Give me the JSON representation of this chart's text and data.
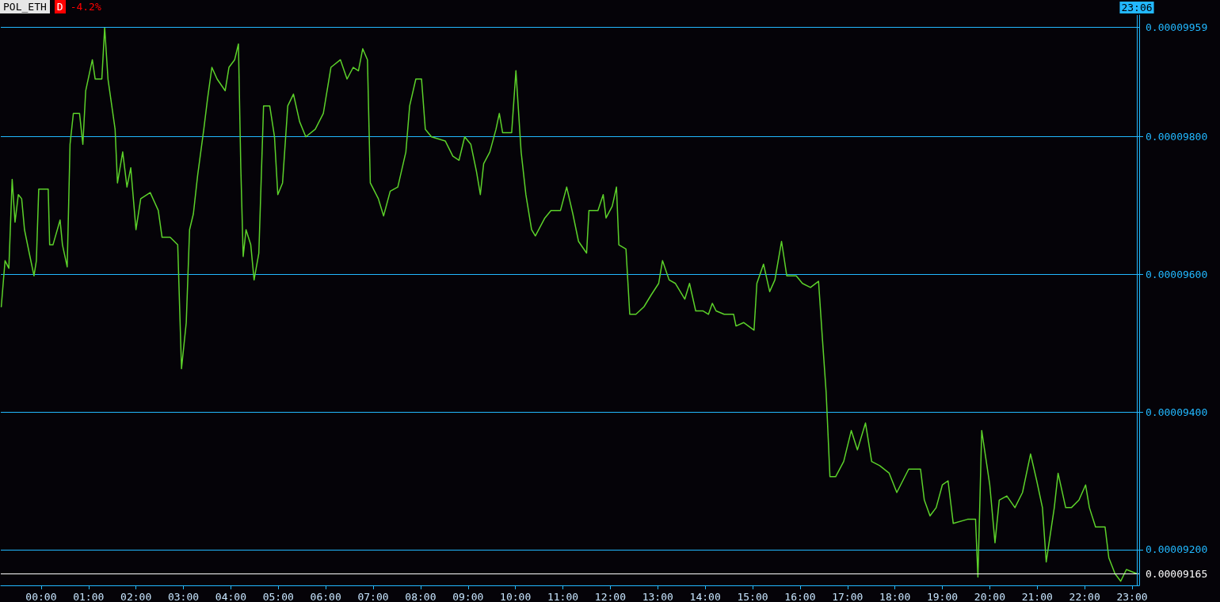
{
  "chart_data": {
    "type": "line",
    "title": "POL_ETH",
    "annotations": [
      "D",
      "-4.2%"
    ],
    "x": [
      -0.84,
      -0.76,
      -0.68,
      -0.61,
      -0.55,
      -0.48,
      -0.41,
      -0.35,
      -0.25,
      -0.15,
      -0.1,
      -0.05,
      0.15,
      0.18,
      0.25,
      0.4,
      0.45,
      0.55,
      0.61,
      0.68,
      0.81,
      0.88,
      0.94,
      1.08,
      1.14,
      1.28,
      1.34,
      1.41,
      1.56,
      1.61,
      1.72,
      1.81,
      1.89,
      2.0,
      2.1,
      2.3,
      2.47,
      2.55,
      2.72,
      2.88,
      2.96,
      3.06,
      3.13,
      3.21,
      3.3,
      3.43,
      3.51,
      3.6,
      3.71,
      3.88,
      3.96,
      4.08,
      4.16,
      4.21,
      4.26,
      4.32,
      4.42,
      4.49,
      4.59,
      4.69,
      4.82,
      4.92,
      4.99,
      5.09,
      5.2,
      5.32,
      5.45,
      5.58,
      5.78,
      5.95,
      6.11,
      6.31,
      6.45,
      6.58,
      6.69,
      6.78,
      6.88,
      6.94,
      7.11,
      7.22,
      7.36,
      7.52,
      7.69,
      7.77,
      7.9,
      8.02,
      8.1,
      8.23,
      8.52,
      8.68,
      8.81,
      8.93,
      9.06,
      9.18,
      9.26,
      9.33,
      9.46,
      9.59,
      9.66,
      9.73,
      9.92,
      10.01,
      10.12,
      10.22,
      10.34,
      10.42,
      10.62,
      10.75,
      10.95,
      11.08,
      11.21,
      11.33,
      11.5,
      11.55,
      11.74,
      11.85,
      11.91,
      12.04,
      12.13,
      12.18,
      12.33,
      12.41,
      12.54,
      12.71,
      12.86,
      13.02,
      13.1,
      13.24,
      13.37,
      13.57,
      13.67,
      13.8,
      13.95,
      14.07,
      14.15,
      14.23,
      14.4,
      14.6,
      14.65,
      14.81,
      15.03,
      15.09,
      15.23,
      15.36,
      15.47,
      15.61,
      15.72,
      15.92,
      16.05,
      16.22,
      16.39,
      16.47,
      16.55,
      16.63,
      16.75,
      16.92,
      17.08,
      17.21,
      17.38,
      17.51,
      17.68,
      17.88,
      18.04,
      18.29,
      18.54,
      18.62,
      18.74,
      18.87,
      19.0,
      19.12,
      19.23,
      19.53,
      19.7,
      19.75,
      19.83,
      20.0,
      20.11,
      20.2,
      20.36,
      20.53,
      20.69,
      20.86,
      20.99,
      21.11,
      21.19,
      21.36,
      21.44,
      21.6,
      21.72,
      21.88,
      22.02,
      22.1,
      22.23,
      22.43,
      22.51,
      22.64,
      22.76,
      22.88,
      23.1
    ],
    "series": [
      {
        "color": "#5cd12a",
        "values": [
          9.553e-05,
          9.62e-05,
          9.609e-05,
          9.738e-05,
          9.676e-05,
          9.716e-05,
          9.71e-05,
          9.665e-05,
          9.631e-05,
          9.598e-05,
          9.62e-05,
          9.724e-05,
          9.724e-05,
          9.643e-05,
          9.643e-05,
          9.679e-05,
          9.643e-05,
          9.611e-05,
          9.789e-05,
          9.834e-05,
          9.834e-05,
          9.789e-05,
          9.867e-05,
          9.912e-05,
          9.884e-05,
          9.884e-05,
          9.959e-05,
          9.884e-05,
          9.811e-05,
          9.733e-05,
          9.778e-05,
          9.727e-05,
          9.755e-05,
          9.665e-05,
          9.71e-05,
          9.719e-05,
          9.693e-05,
          9.654e-05,
          9.654e-05,
          9.643e-05,
          9.463e-05,
          9.53e-05,
          9.665e-05,
          9.688e-05,
          9.744e-05,
          9.811e-05,
          9.856e-05,
          9.901e-05,
          9.884e-05,
          9.867e-05,
          9.901e-05,
          9.912e-05,
          9.935e-05,
          9.755e-05,
          9.626e-05,
          9.665e-05,
          9.643e-05,
          9.592e-05,
          9.631e-05,
          9.845e-05,
          9.845e-05,
          9.8e-05,
          9.716e-05,
          9.733e-05,
          9.845e-05,
          9.862e-05,
          9.822e-05,
          9.8e-05,
          9.811e-05,
          9.834e-05,
          9.901e-05,
          9.912e-05,
          9.884e-05,
          9.901e-05,
          9.896e-05,
          9.928e-05,
          9.912e-05,
          9.733e-05,
          9.71e-05,
          9.685e-05,
          9.721e-05,
          9.727e-05,
          9.778e-05,
          9.845e-05,
          9.884e-05,
          9.884e-05,
          9.811e-05,
          9.8e-05,
          9.794e-05,
          9.772e-05,
          9.766e-05,
          9.8e-05,
          9.789e-05,
          9.749e-05,
          9.716e-05,
          9.761e-05,
          9.778e-05,
          9.811e-05,
          9.834e-05,
          9.806e-05,
          9.806e-05,
          9.896e-05,
          9.778e-05,
          9.716e-05,
          9.665e-05,
          9.656e-05,
          9.682e-05,
          9.693e-05,
          9.693e-05,
          9.727e-05,
          9.688e-05,
          9.648e-05,
          9.631e-05,
          9.693e-05,
          9.693e-05,
          9.716e-05,
          9.682e-05,
          9.699e-05,
          9.727e-05,
          9.643e-05,
          9.637e-05,
          9.542e-05,
          9.542e-05,
          9.553e-05,
          9.57e-05,
          9.587e-05,
          9.62e-05,
          9.592e-05,
          9.587e-05,
          9.564e-05,
          9.587e-05,
          9.547e-05,
          9.547e-05,
          9.542e-05,
          9.558e-05,
          9.547e-05,
          9.542e-05,
          9.542e-05,
          9.525e-05,
          9.53e-05,
          9.519e-05,
          9.587e-05,
          9.615e-05,
          9.575e-05,
          9.592e-05,
          9.648e-05,
          9.598e-05,
          9.598e-05,
          9.587e-05,
          9.581e-05,
          9.59e-05,
          9.508e-05,
          9.429e-05,
          9.306e-05,
          9.306e-05,
          9.328e-05,
          9.373e-05,
          9.345e-05,
          9.384e-05,
          9.328e-05,
          9.322e-05,
          9.311e-05,
          9.283e-05,
          9.317e-05,
          9.317e-05,
          9.272e-05,
          9.249e-05,
          9.261e-05,
          9.294e-05,
          9.3e-05,
          9.238e-05,
          9.244e-05,
          9.244e-05,
          9.16e-05,
          9.373e-05,
          9.294e-05,
          9.21e-05,
          9.272e-05,
          9.278e-05,
          9.261e-05,
          9.283e-05,
          9.339e-05,
          9.3e-05,
          9.261e-05,
          9.182e-05,
          9.261e-05,
          9.311e-05,
          9.261e-05,
          9.261e-05,
          9.272e-05,
          9.294e-05,
          9.261e-05,
          9.233e-05,
          9.233e-05,
          9.188e-05,
          9.165e-05,
          9.154e-05,
          9.171e-05,
          9.165e-05
        ]
      }
    ],
    "xlim": [
      -0.85,
      23.15
    ],
    "xticks": [
      {
        "value": 0,
        "label": "00:00"
      },
      {
        "value": 1,
        "label": "01:00"
      },
      {
        "value": 2,
        "label": "02:00"
      },
      {
        "value": 3,
        "label": "03:00"
      },
      {
        "value": 4,
        "label": "04:00"
      },
      {
        "value": 5,
        "label": "05:00"
      },
      {
        "value": 6,
        "label": "06:00"
      },
      {
        "value": 7,
        "label": "07:00"
      },
      {
        "value": 8,
        "label": "08:00"
      },
      {
        "value": 9,
        "label": "09:00"
      },
      {
        "value": 10,
        "label": "10:00"
      },
      {
        "value": 11,
        "label": "11:00"
      },
      {
        "value": 12,
        "label": "12:00"
      },
      {
        "value": 13,
        "label": "13:00"
      },
      {
        "value": 14,
        "label": "14:00"
      },
      {
        "value": 15,
        "label": "15:00"
      },
      {
        "value": 16,
        "label": "16:00"
      },
      {
        "value": 17,
        "label": "17:00"
      },
      {
        "value": 18,
        "label": "18:00"
      },
      {
        "value": 19,
        "label": "19:00"
      },
      {
        "value": 20,
        "label": "20:00"
      },
      {
        "value": 21,
        "label": "21:00"
      },
      {
        "value": 22,
        "label": "22:00"
      },
      {
        "value": 23,
        "label": "23:00"
      }
    ],
    "ylim": [
      9.148e-05,
      9.977e-05
    ],
    "yticks": [
      {
        "value": 9.2e-05,
        "label": "0.00009200"
      },
      {
        "value": 9.4e-05,
        "label": "0.00009400"
      },
      {
        "value": 9.6e-05,
        "label": "0.00009600"
      },
      {
        "value": 9.8e-05,
        "label": "0.00009800"
      }
    ],
    "ref_lines": [
      {
        "axis": "y",
        "value": 9.959e-05,
        "label": "0.00009959",
        "color": "#22b8ff"
      },
      {
        "axis": "y",
        "value": 9.165e-05,
        "label": "0.00009165",
        "color": "#ffffff"
      },
      {
        "axis": "x",
        "value": 23.1,
        "label": "23:06",
        "color": "#22b8ff"
      }
    ],
    "grid": "y",
    "marker": "none",
    "line_style": "solid"
  }
}
